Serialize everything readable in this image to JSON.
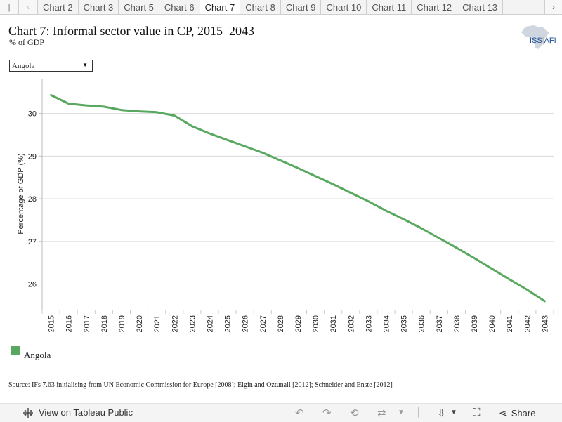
{
  "tabs": {
    "prev_arrow": "‹",
    "next_arrow": "›",
    "items": [
      "Chart 2",
      "Chart 3",
      "Chart 5",
      "Chart 6",
      "Chart 7",
      "Chart 8",
      "Chart 9",
      "Chart 10",
      "Chart 11",
      "Chart 12",
      "Chart 13"
    ],
    "active_index": 4
  },
  "header": {
    "title": "Chart 7: Informal sector value in CP, 2015–2043",
    "subtitle": "% of GDP",
    "logo_text": "ISS",
    "logo_suffix": "AFI"
  },
  "filter": {
    "selected": "Angola"
  },
  "chart_data": {
    "type": "line",
    "title": "Chart 7: Informal sector value in CP, 2015–2043",
    "subtitle": "% of GDP",
    "xlabel": "",
    "ylabel": "Percentage of GDP (%)",
    "ylim": [
      25.4,
      30.8
    ],
    "yticks": [
      26,
      27,
      28,
      29,
      30
    ],
    "grid": true,
    "legend_position": "bottom-left",
    "x": [
      2015,
      2016,
      2017,
      2018,
      2019,
      2020,
      2021,
      2022,
      2023,
      2024,
      2025,
      2026,
      2027,
      2028,
      2029,
      2030,
      2031,
      2032,
      2033,
      2034,
      2035,
      2036,
      2037,
      2038,
      2039,
      2040,
      2041,
      2042,
      2043
    ],
    "series": [
      {
        "name": "Angola",
        "color": "#59a85f",
        "values": [
          30.43,
          30.23,
          30.19,
          30.16,
          30.08,
          30.05,
          30.03,
          29.95,
          29.7,
          29.53,
          29.38,
          29.23,
          29.08,
          28.9,
          28.72,
          28.53,
          28.34,
          28.14,
          27.94,
          27.72,
          27.52,
          27.31,
          27.08,
          26.85,
          26.61,
          26.36,
          26.11,
          25.87,
          25.6
        ]
      }
    ]
  },
  "legend": {
    "label": "Angola",
    "color": "#59a85f"
  },
  "source": "Source: IFs 7.63 initialising from UN Economic Commission for Europe [2008]; Elgin and Oztunali [2012]; Schneider and Enste [2012]",
  "footer": {
    "view_label": "View on Tableau Public",
    "share_label": "Share"
  }
}
